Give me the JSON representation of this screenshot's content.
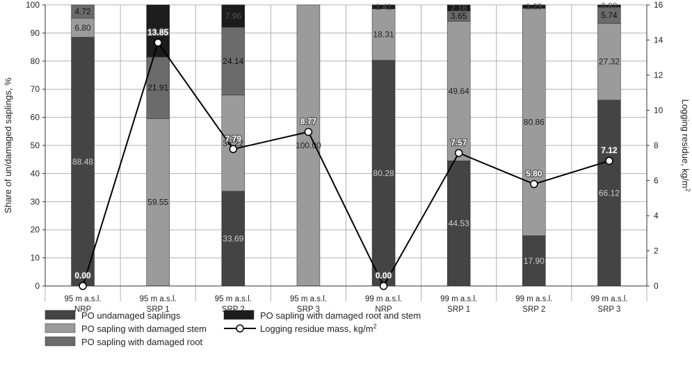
{
  "chart_data": {
    "type": "bar",
    "stacked": true,
    "categories": [
      [
        "95 m a.s.l.",
        "NRP"
      ],
      [
        "95 m a.s.l.",
        "SRP 1"
      ],
      [
        "95 m a.s.l.",
        "SRP 2"
      ],
      [
        "95 m a.s.l.",
        "SRP 3"
      ],
      [
        "99 m a.s.l.",
        "NRP"
      ],
      [
        "99 m a.s.l.",
        "SRP 1"
      ],
      [
        "99 m a.s.l.",
        "SRP 2"
      ],
      [
        "99 m a.s.l.",
        "SRP 3"
      ]
    ],
    "series": [
      {
        "name": "PO undamaged saplings",
        "color": "#444444",
        "label_color": "#cccccc",
        "values": [
          88.48,
          0,
          33.69,
          0,
          80.28,
          44.53,
          17.9,
          66.12
        ],
        "labels": [
          "88.48",
          "",
          "33.69",
          "",
          "80.28",
          "44.53",
          "17.90",
          "66.12"
        ]
      },
      {
        "name": "PO sapling with damaged stem",
        "color": "#9b9b9b",
        "label_color": "#222222",
        "values": [
          6.8,
          59.55,
          34.22,
          100.0,
          18.31,
          49.64,
          80.86,
          27.32
        ],
        "labels": [
          "6.80",
          "59.55",
          "34.22",
          "100.00",
          "18.31",
          "49.64",
          "80.86",
          "27.32"
        ]
      },
      {
        "name": "PO sapling with damaged root",
        "color": "#6b6b6b",
        "label_color": "#111111",
        "values": [
          4.72,
          21.91,
          24.14,
          0,
          0,
          3.65,
          0,
          5.74
        ],
        "labels": [
          "4.72",
          "21.91",
          "24.14",
          "",
          "",
          "3.65",
          "",
          "5.74"
        ]
      },
      {
        "name": "PO sapling with damaged root and stem",
        "color": "#1c1c1c",
        "label_color": "#555555",
        "values": [
          0,
          18.54,
          7.96,
          0,
          1.41,
          2.18,
          1.23,
          0.82
        ],
        "labels": [
          "",
          "18.54",
          "7.96",
          "",
          "1.41",
          "2.18",
          "1.23",
          "0.82"
        ]
      }
    ],
    "line_series": {
      "name": "Logging residue mass, kg/m²",
      "axis": "right",
      "values": [
        0.0,
        13.85,
        7.79,
        8.77,
        0.0,
        7.57,
        5.8,
        7.12
      ],
      "labels": [
        "0.00",
        "13.85",
        "7.79",
        "8.77",
        "0.00",
        "7.57",
        "5.80",
        "7.12"
      ]
    },
    "y_left": {
      "label": "Share of un/damaged saplings, %",
      "ylim": [
        0,
        100
      ],
      "ticks": [
        "0",
        "10",
        "20",
        "30",
        "40",
        "50",
        "60",
        "70",
        "80",
        "90",
        "100"
      ]
    },
    "y_right": {
      "label": "Logging residue, kg/m²",
      "ylim": [
        0,
        16
      ],
      "ticks": [
        "0",
        "2",
        "4",
        "6",
        "8",
        "10",
        "12",
        "14",
        "16"
      ]
    },
    "grid": true,
    "legend_position": "bottom",
    "legend_entries": [
      {
        "label": "PO undamaged saplings",
        "kind": "bar",
        "color": "#444444"
      },
      {
        "label": "PO sapling with damaged stem",
        "kind": "bar",
        "color": "#9b9b9b"
      },
      {
        "label": "PO sapling with damaged root",
        "kind": "bar",
        "color": "#6b6b6b"
      },
      {
        "label": "PO sapling with damaged root and stem",
        "kind": "bar",
        "color": "#1c1c1c"
      },
      {
        "label": "Logging residue mass, kg/m²",
        "kind": "line",
        "color": "#000000"
      }
    ]
  }
}
